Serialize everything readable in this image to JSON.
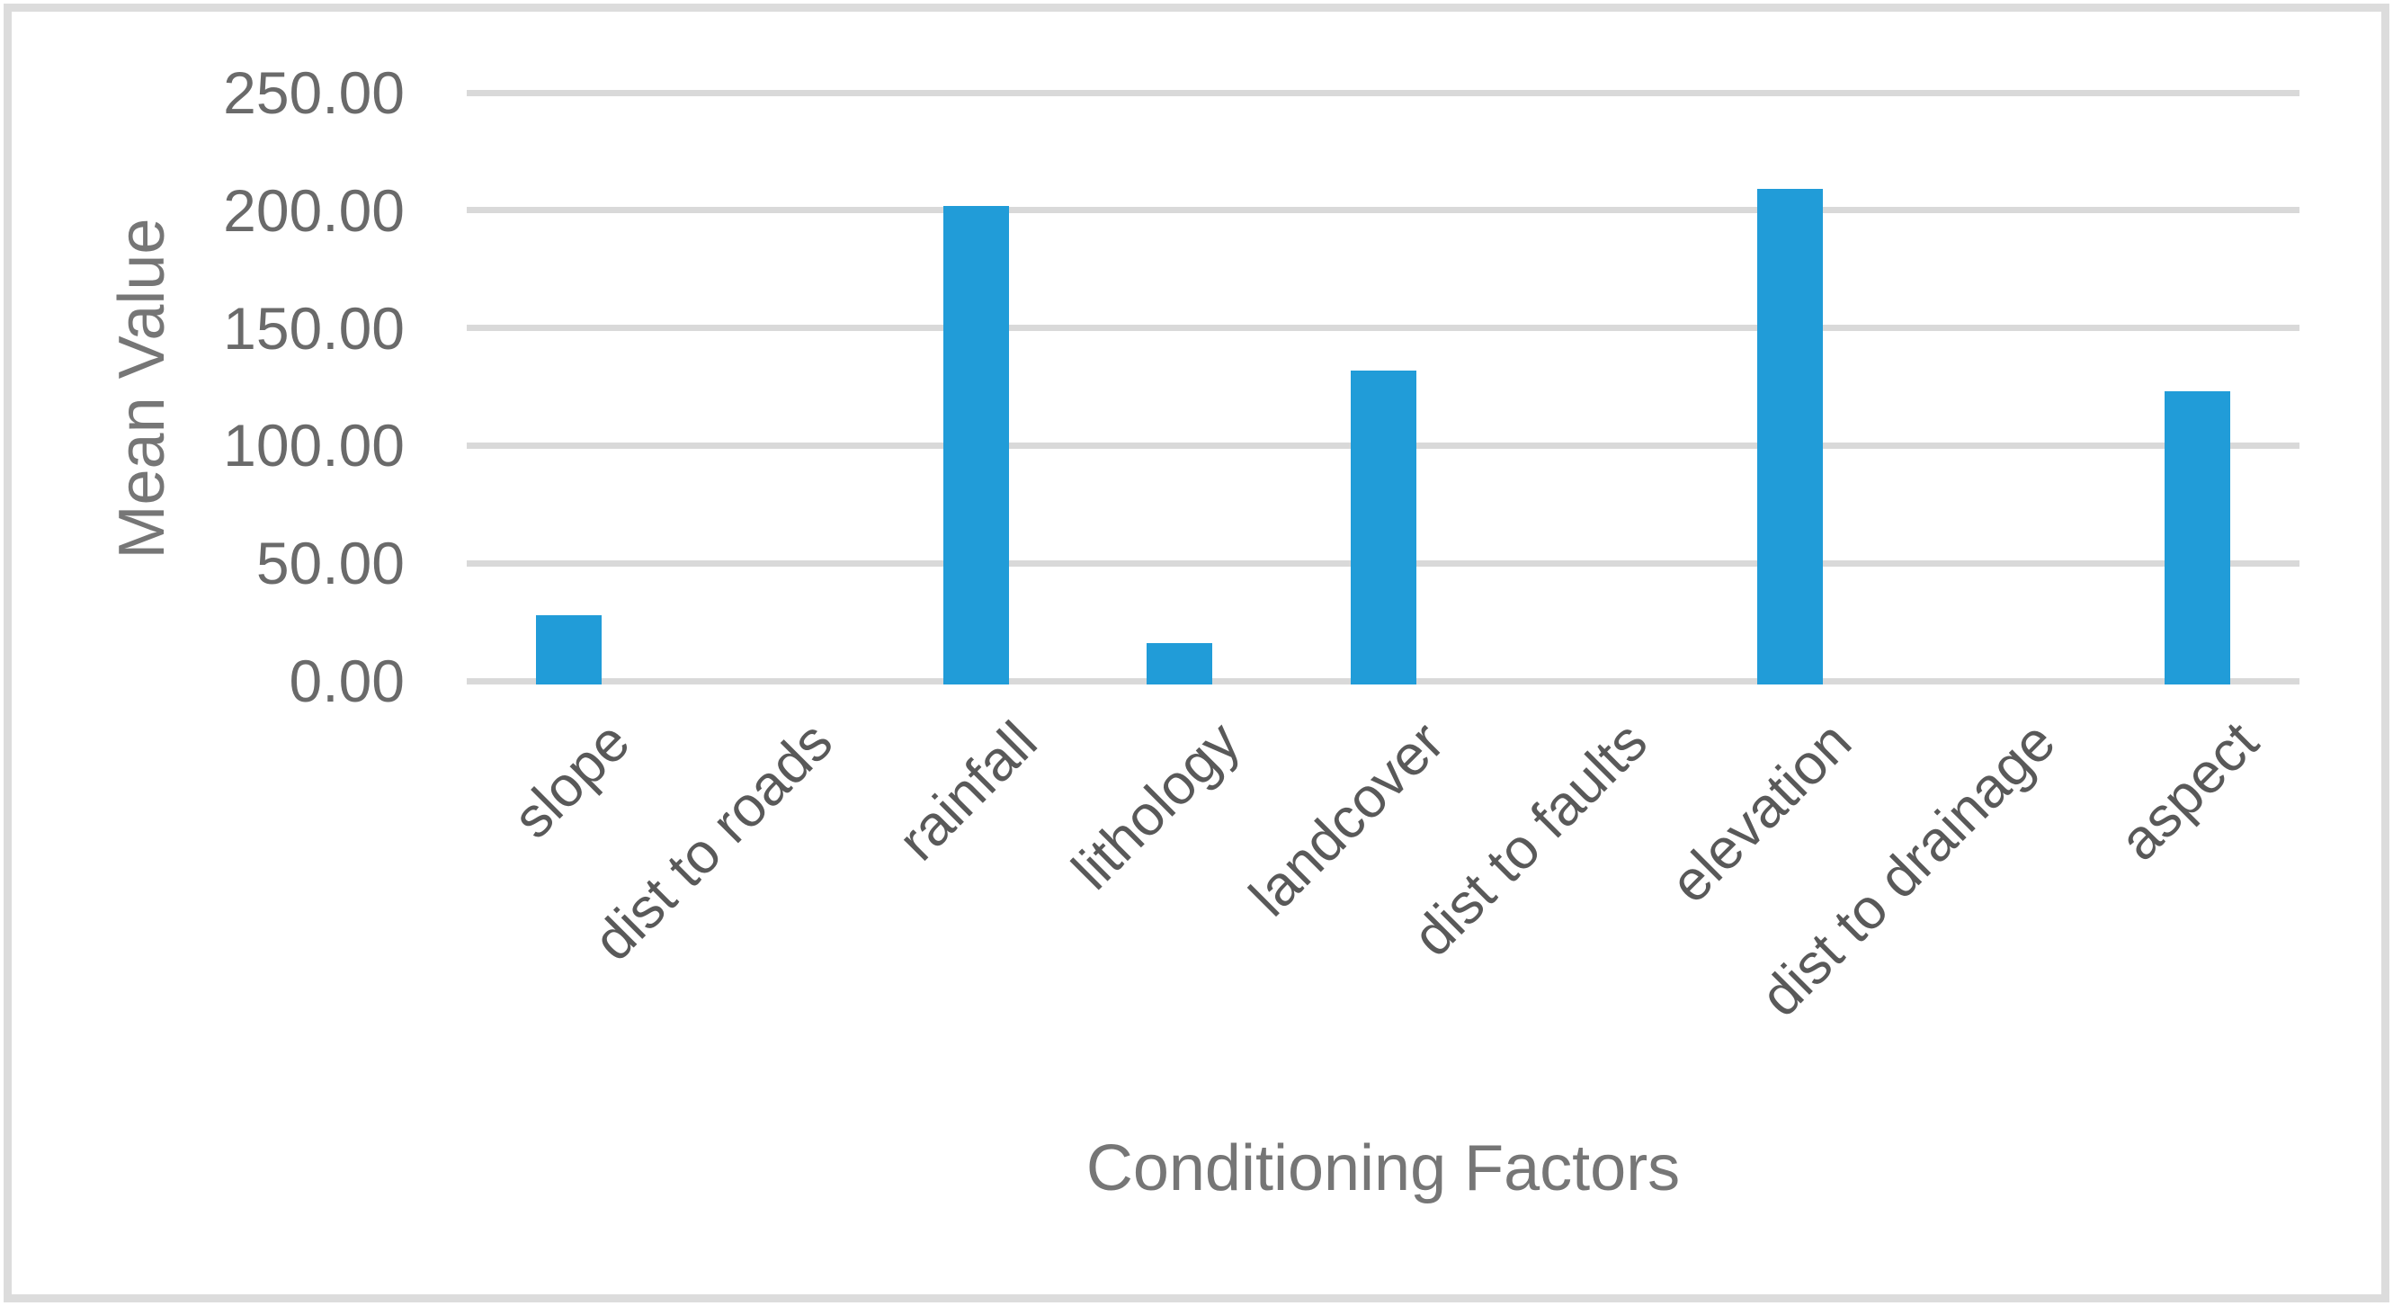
{
  "chart_data": {
    "type": "bar",
    "title": "",
    "xlabel": "Conditioning Factors",
    "ylabel": "Mean Value",
    "categories": [
      "slope",
      "dist to roads",
      "rainfall",
      "lithology",
      "landcover",
      "dist to faults",
      "elevation",
      "dist to drainage",
      "aspect"
    ],
    "values": [
      28,
      0,
      202,
      16,
      132,
      0,
      209,
      0,
      123
    ],
    "ylim": [
      0,
      250
    ],
    "ytick_interval": 50,
    "ytick_values": [
      0,
      50,
      100,
      150,
      200,
      250
    ],
    "ytick_labels": [
      "0.00",
      "50.00",
      "100.00",
      "150.00",
      "200.00",
      "250.00"
    ],
    "grid": "horizontal",
    "legend": "none"
  },
  "colors": {
    "bar": "#219CD8",
    "gridline": "#D9D9D9",
    "tick_text": "#6A6A6A",
    "category_text": "#595959",
    "title_text": "#767676",
    "border": "#DCDCDC",
    "background": "#FFFFFF"
  }
}
